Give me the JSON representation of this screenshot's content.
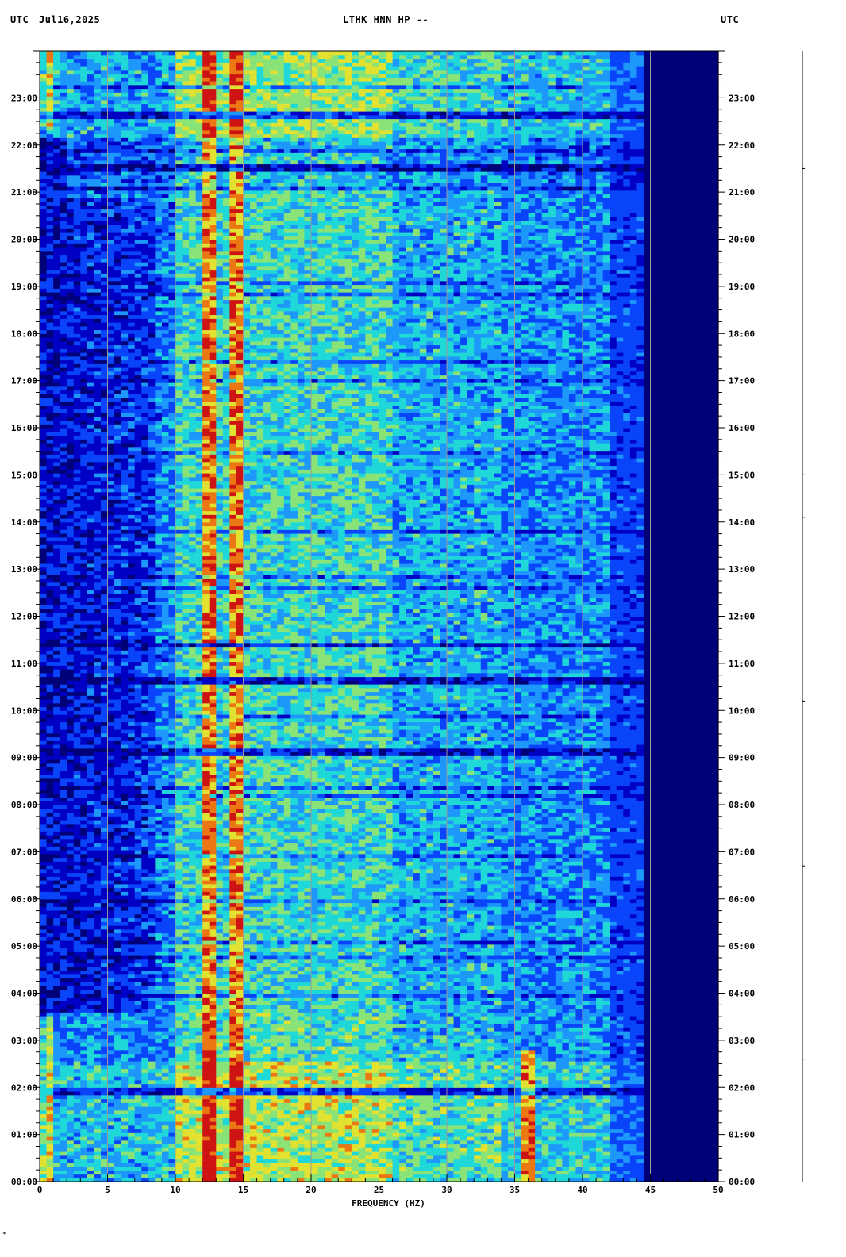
{
  "header": {
    "left_tz": "UTC",
    "date": "Jul16,2025",
    "station": "LTHK HNN HP --",
    "right_tz": "UTC"
  },
  "corner_mark": "*",
  "chart_data": {
    "type": "heatmap",
    "title": "LTHK HNN HP --",
    "xlabel": "FREQUENCY (HZ)",
    "ylabel": "",
    "xlim": [
      0,
      50
    ],
    "ylim_hours": [
      0,
      24
    ],
    "x_ticks": [
      0,
      5,
      10,
      15,
      20,
      25,
      30,
      35,
      40,
      45,
      50
    ],
    "x_tick_labels": [
      "0",
      "5",
      "10",
      "15",
      "20",
      "25",
      "30",
      "35",
      "40",
      "45",
      "50"
    ],
    "y_tick_labels": [
      "00:00",
      "01:00",
      "02:00",
      "03:00",
      "04:00",
      "05:00",
      "06:00",
      "07:00",
      "08:00",
      "09:00",
      "10:00",
      "11:00",
      "12:00",
      "13:00",
      "14:00",
      "15:00",
      "16:00",
      "17:00",
      "18:00",
      "19:00",
      "20:00",
      "21:00",
      "22:00",
      "23:00"
    ],
    "grid": true,
    "colormap": [
      "#00007a",
      "#0000c8",
      "#0a46ff",
      "#1e9bff",
      "#20dcdc",
      "#8ce87a",
      "#e6e632",
      "#f07a14",
      "#d21414"
    ],
    "features": {
      "spectral_lines_hz": [
        12.5,
        14.5,
        36.0
      ],
      "signal_cutoff_hz": 43,
      "quiet_bands_hours": [
        1.95,
        9.1,
        10.65,
        11.4,
        21.55,
        22.65
      ]
    }
  }
}
